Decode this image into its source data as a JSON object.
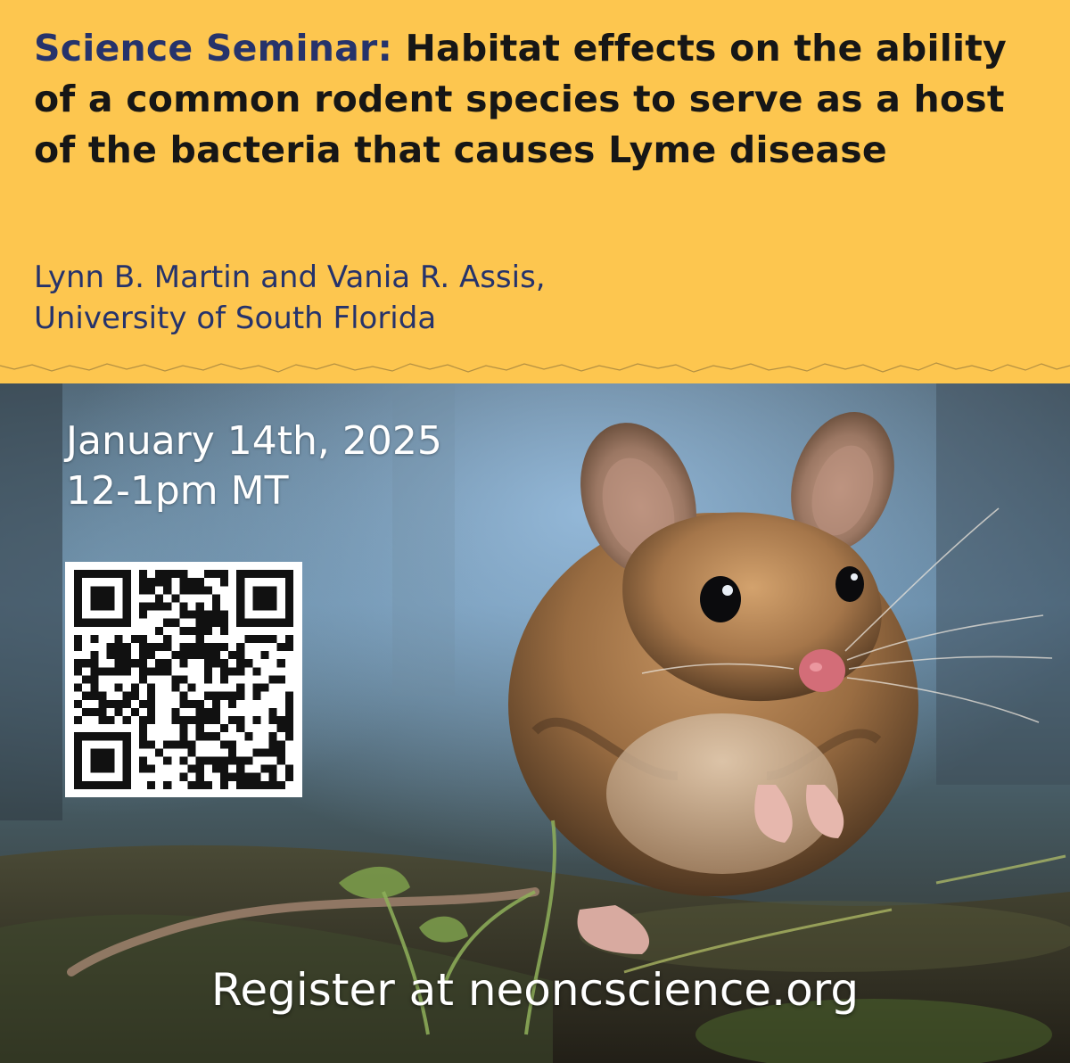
{
  "header": {
    "title_lead": "Science Seminar:",
    "title_rest": "Habitat effects on the ability of a common rodent species to serve as a host of the bacteria that causes Lyme disease",
    "speakers_line1": "Lynn B. Martin and Vania R. Assis,",
    "speakers_line2": "University of South Florida"
  },
  "event": {
    "date": "January 14th, 2025",
    "time": "12-1pm MT"
  },
  "footer": {
    "register_text": "Register at neoncscience.org"
  },
  "colors": {
    "header_background": "#fdc64f",
    "accent_navy": "#26336b",
    "title_text": "#161616",
    "overlay_text": "#ffffff"
  },
  "icons": {
    "qr": "qr-code-icon"
  }
}
